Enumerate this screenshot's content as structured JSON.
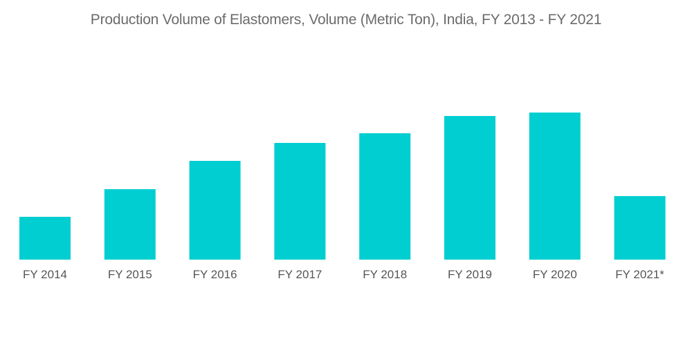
{
  "chart_data": {
    "type": "bar",
    "title": "Production Volume of Elastomers, Volume (Metric Ton), India, FY 2013 - FY 2021",
    "xlabel": "",
    "ylabel": "",
    "categories": [
      "FY 2014",
      "FY 2015",
      "FY 2016",
      "FY 2017",
      "FY 2018",
      "FY 2019",
      "FY 2020",
      "FY 2021*"
    ],
    "values": [
      62,
      102,
      143,
      169,
      183,
      208,
      213,
      92
    ],
    "value_units": "relative (no axis shown)",
    "ylim": [
      0,
      240
    ],
    "grid": false,
    "legend": "none",
    "bar_color": "#00CED1"
  }
}
